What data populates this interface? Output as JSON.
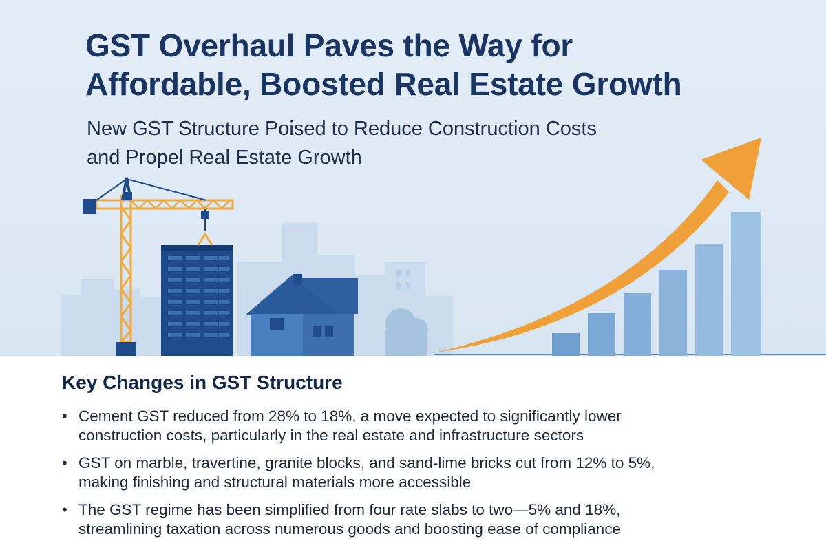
{
  "header": {
    "title_line1": "GST Overhaul Paves the Way for",
    "title_line2": "Affordable, Boosted Real Estate Growth",
    "subtitle_line1": "New GST Structure Poised to Reduce Construction Costs",
    "subtitle_line2": "and Propel Real Estate Growth"
  },
  "illustration": {
    "icons": [
      "crane-icon",
      "building-icon",
      "house-icon",
      "city-skyline",
      "growth-arrow-icon",
      "bar-chart-icon"
    ],
    "colors": {
      "navy": "#1f4a8c",
      "blue": "#2e5f9e",
      "house": "#3d6fb0",
      "crane": "#f0a93a",
      "arrow": "#efa038",
      "bars": "#8bb3d9",
      "skyline": "#c6d8ea"
    }
  },
  "key_changes": {
    "heading": "Key Changes in GST Structure",
    "items": [
      {
        "line1": "Cement GST reduced from 28% to 18%, a move expected to significantly lower",
        "line2": "construction costs, particularly in the real estate and infrastructure sectors"
      },
      {
        "line1": "GST on marble, travertine, granite blocks, and sand-lime bricks cut from 12% to 5%,",
        "line2": "making finishing and structural materials more accessible"
      },
      {
        "line1": "The GST regime has been simplified from four rate slabs to two—5% and 18%,",
        "line2": "streamlining taxation across numerous goods and boosting ease of compliance"
      }
    ],
    "bullet": "•"
  }
}
